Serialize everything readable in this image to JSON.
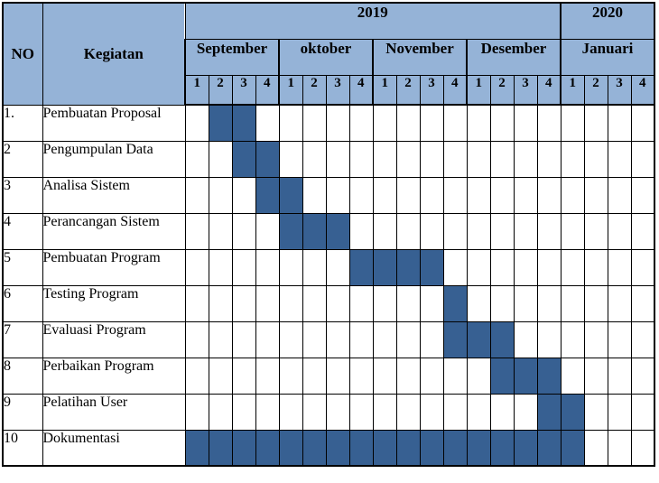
{
  "page": {
    "background": "#ffffff"
  },
  "chart_data": {
    "type": "table",
    "subtype": "gantt-schedule",
    "title": "",
    "columns": {
      "no_label": "NO",
      "activity_label": "Kegiatan"
    },
    "years": [
      {
        "label": "2019",
        "months_spanned": 4
      },
      {
        "label": "2020",
        "months_spanned": 1
      }
    ],
    "months": [
      "September",
      "oktober",
      "November",
      "Desember",
      "Januari"
    ],
    "weeks_per_month": 4,
    "week_labels": [
      "1",
      "2",
      "3",
      "4"
    ],
    "rows": [
      {
        "no": "1.",
        "activity": "Pembuatan Proposal",
        "filled_weeks": [
          2,
          3
        ]
      },
      {
        "no": "2",
        "activity": "Pengumpulan Data",
        "filled_weeks": [
          3,
          4
        ]
      },
      {
        "no": "3",
        "activity": "Analisa Sistem",
        "filled_weeks": [
          4,
          5
        ]
      },
      {
        "no": "4",
        "activity": "Perancangan Sistem",
        "filled_weeks": [
          5,
          6,
          7
        ]
      },
      {
        "no": "5",
        "activity": "Pembuatan Program",
        "filled_weeks": [
          8,
          9,
          10,
          11
        ]
      },
      {
        "no": "6",
        "activity": "Testing Program",
        "filled_weeks": [
          12
        ]
      },
      {
        "no": "7",
        "activity": "Evaluasi Program",
        "filled_weeks": [
          12,
          13,
          14
        ]
      },
      {
        "no": "8",
        "activity": "Perbaikan Program",
        "filled_weeks": [
          14,
          15,
          16
        ]
      },
      {
        "no": "9",
        "activity": "Pelatihan User",
        "filled_weeks": [
          16,
          17
        ]
      },
      {
        "no": "10",
        "activity": "Dokumentasi",
        "filled_weeks": [
          1,
          2,
          3,
          4,
          5,
          6,
          7,
          8,
          9,
          10,
          11,
          12,
          13,
          14,
          15,
          16,
          17
        ]
      }
    ],
    "layout": {
      "no_col_width": 44,
      "activity_col_width": 158,
      "week_col_width": 26
    },
    "colors": {
      "header_bg": "#95B3D7",
      "bar_fill": "#376092",
      "grid": "#000000",
      "body_bg": "#ffffff"
    }
  }
}
